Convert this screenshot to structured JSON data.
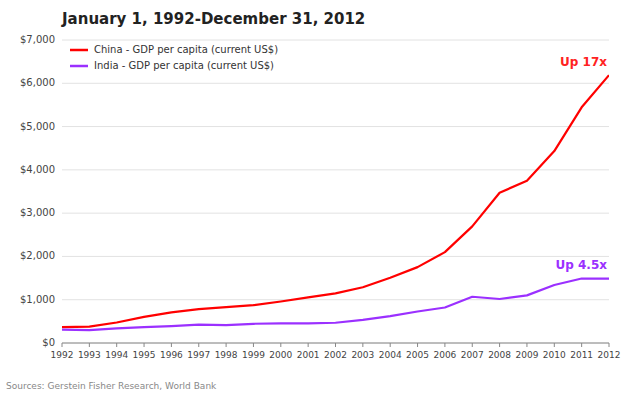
{
  "chart_data": {
    "type": "line",
    "title": "January 1, 1992-December 31, 2012",
    "source": "Sources:  Gerstein Fisher Research, World Bank",
    "x": [
      1992,
      1993,
      1994,
      1995,
      1996,
      1997,
      1998,
      1999,
      2000,
      2001,
      2002,
      2003,
      2004,
      2005,
      2006,
      2007,
      2008,
      2009,
      2010,
      2011,
      2012
    ],
    "series": [
      {
        "name": "China - GDP per capita (current US$)",
        "color": "#ff0000",
        "values": [
          366,
          377,
          473,
          604,
          709,
          781,
          828,
          873,
          959,
          1053,
          1148,
          1288,
          1508,
          1753,
          2099,
          2694,
          3471,
          3749,
          4433,
          5445,
          6188
        ]
      },
      {
        "name": "India - GDP per capita (current US$)",
        "color": "#9b30ff",
        "values": [
          310,
          297,
          337,
          368,
          392,
          423,
          412,
          444,
          455,
          454,
          468,
          533,
          622,
          728,
          820,
          1069,
          1017,
          1100,
          1340,
          1489,
          1489
        ]
      }
    ],
    "annotations": [
      {
        "text": "Up 17x",
        "color": "#ff2222"
      },
      {
        "text": "Up 4.5x",
        "color": "#9b30ff"
      }
    ],
    "xlim": [
      1992,
      2012
    ],
    "xticks": [
      1992,
      1993,
      1994,
      1995,
      1996,
      1997,
      1998,
      1999,
      2000,
      2001,
      2002,
      2003,
      2004,
      2005,
      2006,
      2007,
      2008,
      2009,
      2010,
      2011,
      2012
    ],
    "ylim": [
      0,
      7000
    ],
    "yticks": [
      {
        "value": 0,
        "label": "$0"
      },
      {
        "value": 1000,
        "label": "$1,000"
      },
      {
        "value": 2000,
        "label": "$2,000"
      },
      {
        "value": 3000,
        "label": "$3,000"
      },
      {
        "value": 4000,
        "label": "$4,000"
      },
      {
        "value": 5000,
        "label": "$5,000"
      },
      {
        "value": 6000,
        "label": "$6,000"
      },
      {
        "value": 7000,
        "label": "$7,000"
      }
    ],
    "grid": true,
    "legend": "upper left"
  }
}
